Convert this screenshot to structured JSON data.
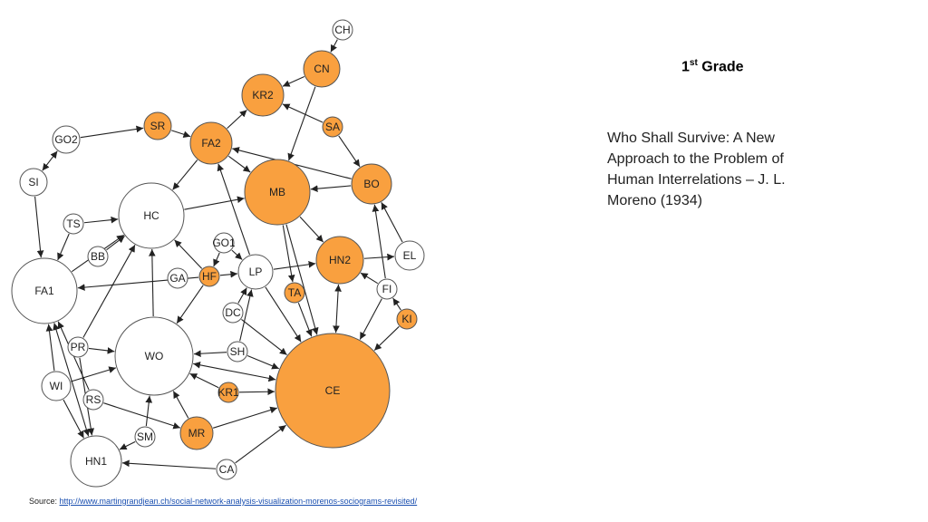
{
  "title": {
    "grade_num": "1",
    "grade_sup": "st",
    "grade_word": "Grade",
    "book": "Who Shall Survive: A New Approach to the Problem of Human Interrelations – J. L. Moreno (1934)"
  },
  "source": {
    "prefix": "Source: ",
    "url": "http://www.martingrandjean.ch/social-network-analysis-visualization-morenos-sociograms-revisited/"
  },
  "colors": {
    "highlight": "#f9a03f",
    "plain": "#ffffff",
    "stroke": "#555555",
    "edge": "#222222"
  },
  "nodes": [
    {
      "id": "CH",
      "hl": false
    },
    {
      "id": "CN",
      "hl": true
    },
    {
      "id": "KR2",
      "hl": true
    },
    {
      "id": "SR",
      "hl": true
    },
    {
      "id": "SA",
      "hl": true
    },
    {
      "id": "GO2",
      "hl": false
    },
    {
      "id": "FA2",
      "hl": true
    },
    {
      "id": "SI",
      "hl": false
    },
    {
      "id": "MB",
      "hl": true
    },
    {
      "id": "BO",
      "hl": true
    },
    {
      "id": "HC",
      "hl": false
    },
    {
      "id": "TS",
      "hl": false
    },
    {
      "id": "GO1",
      "hl": false
    },
    {
      "id": "BB",
      "hl": false
    },
    {
      "id": "HN2",
      "hl": true
    },
    {
      "id": "EL",
      "hl": false
    },
    {
      "id": "LP",
      "hl": false
    },
    {
      "id": "GA",
      "hl": false
    },
    {
      "id": "HF",
      "hl": true
    },
    {
      "id": "FA1",
      "hl": false
    },
    {
      "id": "TA",
      "hl": true
    },
    {
      "id": "FI",
      "hl": false
    },
    {
      "id": "DC",
      "hl": false
    },
    {
      "id": "KI",
      "hl": true
    },
    {
      "id": "PR",
      "hl": false
    },
    {
      "id": "WO",
      "hl": false
    },
    {
      "id": "SH",
      "hl": false
    },
    {
      "id": "WI",
      "hl": false
    },
    {
      "id": "KR1",
      "hl": true
    },
    {
      "id": "CE",
      "hl": true
    },
    {
      "id": "RS",
      "hl": false
    },
    {
      "id": "MR",
      "hl": true
    },
    {
      "id": "SM",
      "hl": false
    },
    {
      "id": "HN1",
      "hl": false
    },
    {
      "id": "CA",
      "hl": false
    }
  ],
  "edges": [
    [
      "CH",
      "CN",
      1
    ],
    [
      "CN",
      "KR2",
      1
    ],
    [
      "SA",
      "KR2",
      1
    ],
    [
      "SA",
      "BO",
      1
    ],
    [
      "FA2",
      "KR2",
      1
    ],
    [
      "SR",
      "FA2",
      1
    ],
    [
      "GO2",
      "SR",
      1
    ],
    [
      "GO2",
      "SI",
      2
    ],
    [
      "SI",
      "FA1",
      1
    ],
    [
      "FA2",
      "HC",
      1
    ],
    [
      "BO",
      "FA2",
      1
    ],
    [
      "FA2",
      "MB",
      1
    ],
    [
      "CN",
      "MB",
      1
    ],
    [
      "BO",
      "MB",
      1
    ],
    [
      "HC",
      "MB",
      1
    ],
    [
      "TS",
      "FA1",
      1
    ],
    [
      "TS",
      "HC",
      1
    ],
    [
      "BB",
      "HC",
      1
    ],
    [
      "FA1",
      "HC",
      1
    ],
    [
      "HF",
      "FA1",
      1
    ],
    [
      "GO1",
      "HF",
      1
    ],
    [
      "GO1",
      "LP",
      1
    ],
    [
      "HF",
      "HC",
      1
    ],
    [
      "HF",
      "LP",
      1
    ],
    [
      "HF",
      "WO",
      1
    ],
    [
      "LP",
      "FA2",
      1
    ],
    [
      "LP",
      "HN2",
      1
    ],
    [
      "LP",
      "CE",
      1
    ],
    [
      "MB",
      "HN2",
      1
    ],
    [
      "MB",
      "CE",
      1
    ],
    [
      "MB",
      "TA",
      1
    ],
    [
      "HN2",
      "CE",
      2
    ],
    [
      "HN2",
      "EL",
      1
    ],
    [
      "FI",
      "HN2",
      1
    ],
    [
      "FI",
      "BO",
      1
    ],
    [
      "EL",
      "BO",
      1
    ],
    [
      "FI",
      "CE",
      1
    ],
    [
      "KI",
      "FI",
      1
    ],
    [
      "KI",
      "CE",
      1
    ],
    [
      "DC",
      "LP",
      1
    ],
    [
      "DC",
      "CE",
      1
    ],
    [
      "TA",
      "CE",
      1
    ],
    [
      "WO",
      "HC",
      1
    ],
    [
      "PR",
      "HC",
      1
    ],
    [
      "PR",
      "WO",
      1
    ],
    [
      "PR",
      "HN1",
      1
    ],
    [
      "FA1",
      "HN1",
      2
    ],
    [
      "WI",
      "WO",
      1
    ],
    [
      "WI",
      "FA1",
      1
    ],
    [
      "WI",
      "HN1",
      1
    ],
    [
      "RS",
      "FA1",
      1
    ],
    [
      "RS",
      "MR",
      1
    ],
    [
      "SH",
      "WO",
      1
    ],
    [
      "SH",
      "CE",
      1
    ],
    [
      "SH",
      "LP",
      1
    ],
    [
      "KR1",
      "CE",
      1
    ],
    [
      "KR1",
      "WO",
      1
    ],
    [
      "WO",
      "CE",
      2
    ],
    [
      "MR",
      "WO",
      1
    ],
    [
      "MR",
      "CE",
      1
    ],
    [
      "SM",
      "WO",
      1
    ],
    [
      "SM",
      "HN1",
      1
    ],
    [
      "CA",
      "HN1",
      1
    ],
    [
      "CA",
      "CE",
      1
    ]
  ]
}
